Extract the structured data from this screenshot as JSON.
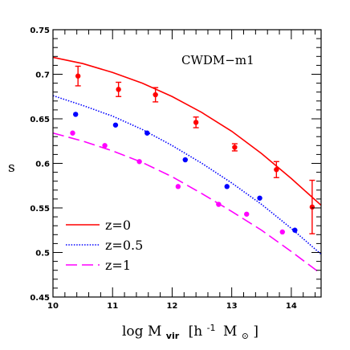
{
  "chart_data": {
    "type": "scatter",
    "title": "CWDM−m1",
    "xlabel": "log M",
    "xlabel_sub": "vir",
    "xlabel_unit": "[h",
    "xlabel_exp": "-1",
    "xlabel_unit2": "M",
    "xlabel_sun": "⊙",
    "xlabel_close": "]",
    "ylabel": "s",
    "xlim": [
      10,
      14.5
    ],
    "ylim": [
      0.45,
      0.75
    ],
    "xticks": [
      10,
      11,
      12,
      13,
      14
    ],
    "xtick_labels": [
      "10",
      "11",
      "12",
      "13",
      "14"
    ],
    "yticks": [
      0.45,
      0.5,
      0.55,
      0.6,
      0.65,
      0.7,
      0.75
    ],
    "ytick_labels": [
      "0.45",
      "0.5",
      "0.55",
      "0.6",
      "0.65",
      "0.7",
      "0.75"
    ],
    "legend_position": "bottom-left",
    "series": [
      {
        "name": "z=0",
        "color": "#ff0000",
        "line_style": "solid",
        "points": [
          {
            "x": 10.42,
            "y": 0.698,
            "err": 0.011
          },
          {
            "x": 11.1,
            "y": 0.683,
            "err": 0.008
          },
          {
            "x": 11.72,
            "y": 0.677,
            "err": 0.008
          },
          {
            "x": 12.4,
            "y": 0.646,
            "err": 0.006
          },
          {
            "x": 13.05,
            "y": 0.618,
            "err": 0.004
          },
          {
            "x": 13.75,
            "y": 0.593,
            "err": 0.009
          },
          {
            "x": 14.35,
            "y": 0.551,
            "err": 0.03
          }
        ],
        "curve": [
          {
            "x": 10.0,
            "y": 0.719
          },
          {
            "x": 10.5,
            "y": 0.712
          },
          {
            "x": 11.0,
            "y": 0.702
          },
          {
            "x": 11.5,
            "y": 0.69
          },
          {
            "x": 12.0,
            "y": 0.675
          },
          {
            "x": 12.5,
            "y": 0.657
          },
          {
            "x": 13.0,
            "y": 0.636
          },
          {
            "x": 13.5,
            "y": 0.611
          },
          {
            "x": 14.0,
            "y": 0.583
          },
          {
            "x": 14.5,
            "y": 0.553
          }
        ]
      },
      {
        "name": "z=0.5",
        "color": "#0000ff",
        "line_style": "dotted",
        "points": [
          {
            "x": 10.38,
            "y": 0.655
          },
          {
            "x": 11.05,
            "y": 0.643
          },
          {
            "x": 11.58,
            "y": 0.634
          },
          {
            "x": 12.22,
            "y": 0.604
          },
          {
            "x": 12.92,
            "y": 0.574
          },
          {
            "x": 13.47,
            "y": 0.561
          },
          {
            "x": 14.06,
            "y": 0.525
          }
        ],
        "curve": [
          {
            "x": 10.0,
            "y": 0.676
          },
          {
            "x": 10.5,
            "y": 0.665
          },
          {
            "x": 11.0,
            "y": 0.653
          },
          {
            "x": 11.5,
            "y": 0.638
          },
          {
            "x": 12.0,
            "y": 0.62
          },
          {
            "x": 12.5,
            "y": 0.6
          },
          {
            "x": 13.0,
            "y": 0.578
          },
          {
            "x": 13.5,
            "y": 0.554
          },
          {
            "x": 14.0,
            "y": 0.527
          },
          {
            "x": 14.5,
            "y": 0.498
          }
        ]
      },
      {
        "name": "z=1",
        "color": "#ff00ff",
        "line_style": "dashed",
        "points": [
          {
            "x": 10.33,
            "y": 0.634
          },
          {
            "x": 10.87,
            "y": 0.62
          },
          {
            "x": 11.45,
            "y": 0.602
          },
          {
            "x": 12.1,
            "y": 0.574
          },
          {
            "x": 12.78,
            "y": 0.554
          },
          {
            "x": 13.25,
            "y": 0.543
          },
          {
            "x": 13.85,
            "y": 0.523
          }
        ],
        "curve": [
          {
            "x": 10.0,
            "y": 0.634
          },
          {
            "x": 10.5,
            "y": 0.625
          },
          {
            "x": 11.0,
            "y": 0.614
          },
          {
            "x": 11.5,
            "y": 0.601
          },
          {
            "x": 12.0,
            "y": 0.585
          },
          {
            "x": 12.5,
            "y": 0.566
          },
          {
            "x": 13.0,
            "y": 0.546
          },
          {
            "x": 13.5,
            "y": 0.525
          },
          {
            "x": 14.0,
            "y": 0.501
          },
          {
            "x": 14.5,
            "y": 0.476
          }
        ]
      }
    ]
  }
}
